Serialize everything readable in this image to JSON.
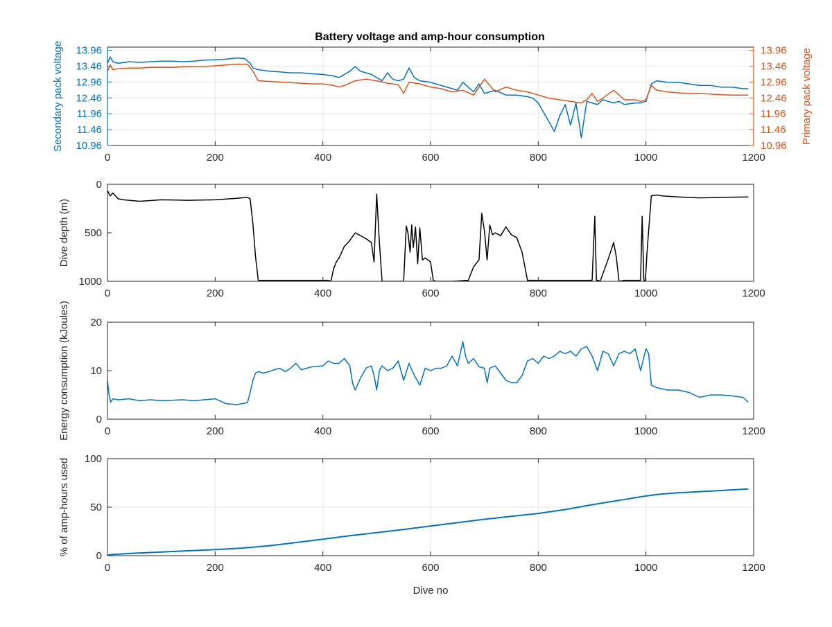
{
  "figure": {
    "title": "Battery voltage and amp-hour consumption"
  },
  "colors": {
    "secondary": "#0072BD",
    "primary": "#D95319",
    "depth": "#000000",
    "axis": "#262626",
    "grid": "#e6e6e6"
  },
  "chart_data": [
    {
      "type": "line",
      "id": "voltage",
      "title": "Battery voltage and amp-hour consumption",
      "xlabel": "",
      "ylabel": "Secondary pack voltage",
      "ylabel_right": "Primary pack voltage",
      "xlim": [
        0,
        1200
      ],
      "ylim": [
        10.96,
        14.06
      ],
      "xticks": [
        0,
        200,
        400,
        600,
        800,
        1000,
        1200
      ],
      "yticks": [
        10.96,
        11.46,
        11.96,
        12.46,
        12.96,
        13.46,
        13.96
      ],
      "ytick_labels": [
        "10.96",
        "11.46",
        "11.96",
        "12.46",
        "12.96",
        "13.46",
        "13.96"
      ],
      "grid": true,
      "series": [
        {
          "name": "Secondary pack voltage",
          "axis": "left",
          "color": "#0072BD",
          "x": [
            0,
            5,
            10,
            20,
            40,
            60,
            80,
            100,
            120,
            140,
            160,
            180,
            200,
            220,
            240,
            255,
            265,
            270,
            280,
            300,
            320,
            340,
            360,
            380,
            400,
            420,
            430,
            440,
            450,
            460,
            470,
            480,
            490,
            500,
            510,
            520,
            530,
            540,
            550,
            560,
            570,
            580,
            600,
            620,
            640,
            650,
            660,
            680,
            690,
            700,
            720,
            740,
            760,
            780,
            790,
            800,
            810,
            820,
            830,
            840,
            850,
            860,
            870,
            880,
            890,
            900,
            910,
            920,
            930,
            940,
            950,
            960,
            980,
            990,
            1000,
            1010,
            1020,
            1040,
            1060,
            1080,
            1100,
            1120,
            1140,
            1160,
            1180,
            1190
          ],
          "y": [
            13.55,
            13.75,
            13.6,
            13.55,
            13.6,
            13.58,
            13.6,
            13.62,
            13.62,
            13.6,
            13.62,
            13.65,
            13.66,
            13.68,
            13.72,
            13.7,
            13.55,
            13.4,
            13.35,
            13.3,
            13.28,
            13.25,
            13.25,
            13.22,
            13.2,
            13.15,
            13.1,
            13.2,
            13.3,
            13.45,
            13.3,
            13.25,
            13.2,
            13.1,
            13.0,
            13.25,
            13.05,
            13.0,
            13.05,
            13.4,
            13.1,
            13.0,
            12.95,
            12.85,
            12.75,
            12.7,
            12.95,
            12.65,
            12.9,
            12.6,
            12.7,
            12.55,
            12.55,
            12.5,
            12.45,
            12.3,
            12.0,
            11.7,
            11.4,
            11.9,
            12.25,
            11.6,
            12.3,
            11.2,
            12.35,
            12.3,
            12.25,
            12.4,
            12.35,
            12.3,
            12.35,
            12.25,
            12.3,
            12.3,
            12.35,
            12.9,
            13.0,
            12.95,
            12.95,
            12.9,
            12.85,
            12.85,
            12.8,
            12.8,
            12.75,
            12.75
          ]
        },
        {
          "name": "Primary pack voltage",
          "axis": "right",
          "color": "#D95319",
          "x": [
            0,
            5,
            10,
            20,
            40,
            60,
            80,
            100,
            120,
            140,
            160,
            180,
            200,
            220,
            240,
            260,
            270,
            280,
            300,
            320,
            340,
            360,
            380,
            400,
            420,
            430,
            440,
            460,
            480,
            500,
            520,
            540,
            550,
            560,
            580,
            600,
            620,
            640,
            660,
            680,
            700,
            720,
            740,
            760,
            780,
            800,
            820,
            840,
            860,
            880,
            890,
            900,
            910,
            920,
            940,
            960,
            980,
            990,
            1000,
            1010,
            1020,
            1040,
            1060,
            1080,
            1100,
            1120,
            1140,
            1160,
            1190
          ],
          "y": [
            13.3,
            13.5,
            13.35,
            13.38,
            13.4,
            13.4,
            13.42,
            13.42,
            13.42,
            13.44,
            13.45,
            13.45,
            13.47,
            13.5,
            13.52,
            13.52,
            13.3,
            13.0,
            12.98,
            12.96,
            12.94,
            12.92,
            12.9,
            12.9,
            12.85,
            12.8,
            12.85,
            13.0,
            13.05,
            13.0,
            12.92,
            12.88,
            12.6,
            12.95,
            12.9,
            12.8,
            12.75,
            12.65,
            12.7,
            12.55,
            13.05,
            12.65,
            12.8,
            12.7,
            12.65,
            12.55,
            12.45,
            12.4,
            12.35,
            12.3,
            12.4,
            12.6,
            12.35,
            12.45,
            12.7,
            12.4,
            12.4,
            12.35,
            12.4,
            12.85,
            12.7,
            12.65,
            12.62,
            12.6,
            12.6,
            12.58,
            12.56,
            12.55,
            12.55
          ]
        }
      ]
    },
    {
      "type": "line",
      "id": "depth",
      "xlabel": "",
      "ylabel": "Dive depth (m)",
      "xlim": [
        0,
        1200
      ],
      "ylim": [
        0,
        1000
      ],
      "reversed_y": true,
      "xticks": [
        0,
        200,
        400,
        600,
        800,
        1000,
        1200
      ],
      "yticks": [
        0,
        500,
        1000
      ],
      "ytick_labels": [
        "0",
        "500",
        "1000"
      ],
      "grid": false,
      "series": [
        {
          "name": "",
          "color": "#000000",
          "x": [
            0,
            5,
            10,
            20,
            30,
            60,
            100,
            150,
            200,
            240,
            260,
            265,
            270,
            275,
            280,
            300,
            350,
            400,
            410,
            415,
            420,
            425,
            430,
            440,
            450,
            460,
            470,
            480,
            490,
            495,
            500,
            505,
            510,
            520,
            540,
            550,
            555,
            558,
            562,
            565,
            568,
            572,
            576,
            580,
            585,
            590,
            600,
            605,
            610,
            620,
            640,
            670,
            680,
            690,
            695,
            700,
            705,
            710,
            715,
            720,
            730,
            740,
            750,
            760,
            770,
            780,
            790,
            800,
            850,
            900,
            905,
            908,
            912,
            915,
            930,
            940,
            945,
            950,
            960,
            980,
            990,
            993,
            996,
            999,
            1002,
            1010,
            1020,
            1030,
            1060,
            1100,
            1140,
            1190
          ],
          "y": [
            65,
            120,
            90,
            150,
            160,
            175,
            160,
            165,
            160,
            145,
            135,
            150,
            400,
            750,
            990,
            990,
            990,
            990,
            990,
            1000,
            870,
            800,
            760,
            640,
            580,
            500,
            530,
            560,
            600,
            800,
            100,
            600,
            1000,
            1000,
            1000,
            1000,
            430,
            500,
            700,
            420,
            650,
            440,
            820,
            450,
            780,
            760,
            800,
            990,
            1000,
            1000,
            1000,
            990,
            850,
            780,
            300,
            480,
            780,
            420,
            520,
            500,
            530,
            440,
            520,
            550,
            700,
            990,
            990,
            990,
            990,
            990,
            330,
            990,
            990,
            1000,
            770,
            600,
            750,
            1000,
            990,
            990,
            990,
            330,
            990,
            990,
            700,
            120,
            110,
            120,
            130,
            140,
            135,
            130
          ]
        }
      ]
    },
    {
      "type": "line",
      "id": "energy",
      "xlabel": "",
      "ylabel": "Energy consumption (kJoules)",
      "xlim": [
        0,
        1200
      ],
      "ylim": [
        0,
        20
      ],
      "xticks": [
        0,
        200,
        400,
        600,
        800,
        1000,
        1200
      ],
      "yticks": [
        0,
        10,
        20
      ],
      "ytick_labels": [
        "0",
        "10",
        "20"
      ],
      "grid": false,
      "series": [
        {
          "name": "",
          "color": "#0072BD",
          "x": [
            0,
            3,
            6,
            10,
            20,
            40,
            60,
            80,
            100,
            120,
            140,
            160,
            180,
            200,
            220,
            240,
            260,
            265,
            270,
            275,
            280,
            290,
            300,
            310,
            320,
            330,
            340,
            350,
            360,
            380,
            400,
            410,
            420,
            430,
            440,
            450,
            455,
            460,
            470,
            480,
            490,
            495,
            500,
            505,
            510,
            520,
            530,
            540,
            550,
            560,
            570,
            580,
            590,
            600,
            610,
            620,
            630,
            640,
            650,
            660,
            665,
            670,
            680,
            690,
            700,
            705,
            710,
            720,
            730,
            740,
            750,
            760,
            770,
            780,
            790,
            800,
            810,
            820,
            830,
            840,
            850,
            860,
            870,
            880,
            890,
            900,
            910,
            920,
            930,
            940,
            950,
            960,
            970,
            980,
            990,
            1000,
            1005,
            1010,
            1020,
            1040,
            1060,
            1080,
            1100,
            1120,
            1140,
            1160,
            1180,
            1190
          ],
          "y": [
            8,
            5,
            3.5,
            4.2,
            4.0,
            4.2,
            3.8,
            4.0,
            3.8,
            3.9,
            4.0,
            3.8,
            4.0,
            4.2,
            3.2,
            3.0,
            3.4,
            5.5,
            8.0,
            9.5,
            9.8,
            9.5,
            9.8,
            10.2,
            10.5,
            9.8,
            10.5,
            11.5,
            10.2,
            10.8,
            11.0,
            12.0,
            11.5,
            11.5,
            12.5,
            11.0,
            7.5,
            6.0,
            8.5,
            10.5,
            11.0,
            9.0,
            6.0,
            10.0,
            11.0,
            10.0,
            10.5,
            12.0,
            8.0,
            11.5,
            9.0,
            7.0,
            10.5,
            10.0,
            10.5,
            10.5,
            11.0,
            13.0,
            11.0,
            16.0,
            13.0,
            11.5,
            12.5,
            10.8,
            10.5,
            7.5,
            10.5,
            11.0,
            9.5,
            8.0,
            7.5,
            7.5,
            9.0,
            12.0,
            12.5,
            11.5,
            13.0,
            12.5,
            13.0,
            14.0,
            13.5,
            14.0,
            13.0,
            14.5,
            15.0,
            13.0,
            10.0,
            14.0,
            13.5,
            11.0,
            13.5,
            14.0,
            13.5,
            14.5,
            10.0,
            14.5,
            13.5,
            7.0,
            6.5,
            6.0,
            6.0,
            5.5,
            4.5,
            5.0,
            5.0,
            4.8,
            4.5,
            3.5
          ]
        }
      ]
    },
    {
      "type": "line",
      "id": "amphours",
      "xlabel": "Dive no",
      "ylabel": "% of amp-hours used",
      "xlim": [
        0,
        1200
      ],
      "ylim": [
        0,
        100
      ],
      "xticks": [
        0,
        200,
        400,
        600,
        800,
        1000,
        1200
      ],
      "yticks": [
        0,
        50,
        100
      ],
      "ytick_labels": [
        "0",
        "50",
        "100"
      ],
      "grid": true,
      "series": [
        {
          "name": "",
          "color": "#0072BD",
          "x": [
            0,
            10,
            50,
            100,
            150,
            200,
            250,
            300,
            350,
            400,
            450,
            500,
            550,
            600,
            650,
            700,
            750,
            800,
            850,
            900,
            950,
            1000,
            1020,
            1050,
            1100,
            1150,
            1190
          ],
          "y": [
            0.5,
            1.2,
            2.5,
            3.8,
            5.0,
            6.3,
            7.8,
            10.2,
            13.5,
            17.0,
            20.5,
            23.8,
            27.0,
            30.5,
            34.0,
            37.5,
            40.5,
            43.5,
            47.5,
            52.5,
            57.0,
            61.5,
            63.0,
            64.5,
            66.0,
            67.5,
            68.7
          ]
        }
      ]
    }
  ]
}
